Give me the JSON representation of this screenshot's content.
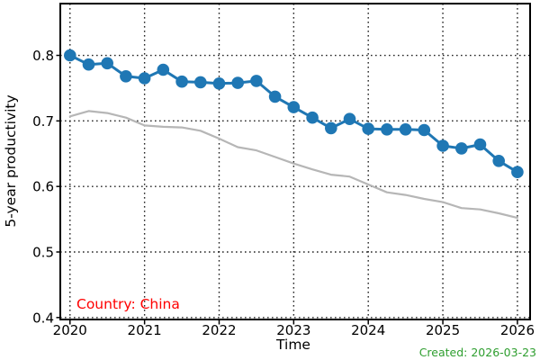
{
  "annotations": {
    "country_label": "Country: China",
    "country_color": "#ff0000",
    "created_label": "Created: 2026-03-23",
    "created_color": "#2e9e2f"
  },
  "chart_data": {
    "type": "line",
    "xlabel": "Time",
    "ylabel": "5-year productivity",
    "xlim": [
      2019.87,
      2026.17
    ],
    "ylim": [
      0.397,
      0.879
    ],
    "grid": {
      "style": "dotted",
      "color": "#000000",
      "axes": "both"
    },
    "legend": "none",
    "x_ticks": {
      "values": [
        2020,
        2021,
        2022,
        2023,
        2024,
        2025,
        2026
      ],
      "labels": [
        "2020",
        "2021",
        "2022",
        "2023",
        "2024",
        "2025",
        "2026"
      ]
    },
    "y_ticks": {
      "values": [
        0.4,
        0.5,
        0.6,
        0.7,
        0.8
      ],
      "labels": [
        "0.4",
        "0.5",
        "0.6",
        "0.7",
        "0.8"
      ]
    },
    "x": [
      2020.0,
      2020.25,
      2020.5,
      2020.75,
      2021.0,
      2021.25,
      2021.5,
      2021.75,
      2022.0,
      2022.25,
      2022.5,
      2022.75,
      2023.0,
      2023.25,
      2023.5,
      2023.75,
      2024.0,
      2024.25,
      2024.5,
      2024.75,
      2025.0,
      2025.25,
      2025.5,
      2025.75,
      2026.0
    ],
    "series": [
      {
        "id": "primary-marked-line",
        "color": "#1f77b4",
        "marker": "circle",
        "marker_radius": 6.8,
        "line_width": 3,
        "values": [
          0.8,
          0.786,
          0.788,
          0.768,
          0.765,
          0.778,
          0.76,
          0.759,
          0.757,
          0.758,
          0.761,
          0.737,
          0.721,
          0.705,
          0.689,
          0.703,
          0.688,
          0.687,
          0.687,
          0.686,
          0.662,
          0.658,
          0.664,
          0.639,
          0.622
        ]
      },
      {
        "id": "secondary-plain-line",
        "color": "#b6b6b6",
        "marker": "none",
        "marker_radius": 0,
        "line_width": 2.2,
        "values": [
          0.707,
          0.715,
          0.712,
          0.705,
          0.693,
          0.691,
          0.69,
          0.685,
          0.673,
          0.66,
          0.655,
          0.645,
          0.635,
          0.626,
          0.618,
          0.615,
          0.603,
          0.591,
          0.587,
          0.581,
          0.576,
          0.567,
          0.565,
          0.559,
          0.552
        ]
      }
    ]
  }
}
